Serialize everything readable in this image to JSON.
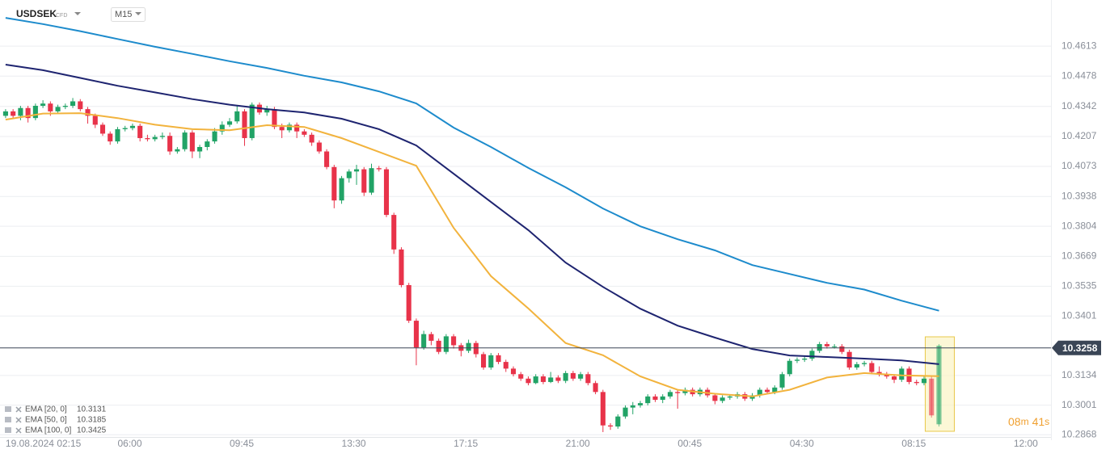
{
  "header": {
    "symbol": "USDSEK",
    "instrument": "CFD",
    "timeframe": "M15"
  },
  "chart_data": {
    "type": "candlestick",
    "up_color": "#21a366",
    "down_color": "#e8334a",
    "open": [
      10.43,
      10.432,
      10.43,
      10.4335,
      10.429,
      10.4345,
      10.4355,
      10.432,
      10.434,
      10.4345,
      10.4365,
      10.433,
      10.43,
      10.426,
      10.422,
      10.4185,
      10.424,
      10.4245,
      10.4255,
      10.42,
      10.4195,
      10.4205,
      10.421,
      10.414,
      10.415,
      10.4225,
      10.414,
      10.416,
      10.4185,
      10.423,
      10.426,
      10.4275,
      10.432,
      10.42,
      10.435,
      10.4315,
      10.433,
      10.425,
      10.4235,
      10.426,
      10.423,
      10.4215,
      10.418,
      10.414,
      10.407,
      10.392,
      10.402,
      10.405,
      10.406,
      10.3955,
      10.4065,
      10.406,
      10.3855,
      10.37,
      10.354,
      10.338,
      10.326,
      10.332,
      10.329,
      10.324,
      10.331,
      10.327,
      10.3245,
      10.328,
      10.323,
      10.317,
      10.3225,
      10.3195,
      10.3165,
      10.314,
      10.312,
      10.31,
      10.313,
      10.3105,
      10.3125,
      10.311,
      10.3145,
      10.312,
      10.314,
      10.31,
      10.306,
      10.291,
      10.2905,
      10.295,
      10.299,
      10.3,
      10.301,
      10.304,
      10.3025,
      10.304,
      10.306,
      10.3055,
      10.307,
      10.305,
      10.307,
      10.3045,
      10.302,
      10.3035,
      10.304,
      10.305,
      10.303,
      10.3045,
      10.307,
      10.306,
      10.308,
      10.314,
      10.32,
      10.3205,
      10.321,
      10.3245,
      10.3275,
      10.3265,
      10.3265,
      10.324,
      10.317,
      10.3185,
      10.319,
      10.315,
      10.314,
      10.313,
      10.3115,
      10.3165,
      10.3105,
      10.31,
      10.312,
      10.2915
    ],
    "high": [
      10.433,
      10.433,
      10.4345,
      10.4345,
      10.4355,
      10.437,
      10.4365,
      10.435,
      10.4355,
      10.438,
      10.4375,
      10.434,
      10.431,
      10.427,
      10.423,
      10.425,
      10.4255,
      10.4265,
      10.4265,
      10.4215,
      10.4215,
      10.4225,
      10.4225,
      10.416,
      10.4235,
      10.4235,
      10.417,
      10.4195,
      10.4245,
      10.4275,
      10.429,
      10.4345,
      10.433,
      10.436,
      10.436,
      10.4345,
      10.434,
      10.4265,
      10.427,
      10.427,
      10.424,
      10.4225,
      10.419,
      10.415,
      10.408,
      10.403,
      10.406,
      10.408,
      10.407,
      10.4085,
      10.4075,
      10.407,
      10.3865,
      10.371,
      10.355,
      10.339,
      10.3335,
      10.333,
      10.33,
      10.332,
      10.332,
      10.328,
      10.3295,
      10.329,
      10.324,
      10.3235,
      10.3235,
      10.3205,
      10.3175,
      10.315,
      10.313,
      10.314,
      10.314,
      10.315,
      10.3135,
      10.3155,
      10.3155,
      10.315,
      10.315,
      10.311,
      10.307,
      10.292,
      10.296,
      10.3,
      10.3015,
      10.302,
      10.305,
      10.305,
      10.305,
      10.307,
      10.307,
      10.308,
      10.308,
      10.308,
      10.308,
      10.3055,
      10.3045,
      10.305,
      10.306,
      10.306,
      10.3055,
      10.308,
      10.308,
      10.309,
      10.315,
      10.321,
      10.3215,
      10.322,
      10.3255,
      10.3285,
      10.3285,
      10.3275,
      10.3275,
      10.325,
      10.3195,
      10.32,
      10.32,
      10.3175,
      10.315,
      10.314,
      10.3175,
      10.3175,
      10.3115,
      10.3135,
      10.313,
      10.3275
    ],
    "low": [
      10.429,
      10.4285,
      10.428,
      10.427,
      10.428,
      10.4335,
      10.43,
      10.431,
      10.433,
      10.4335,
      10.432,
      10.4265,
      10.4245,
      10.421,
      10.417,
      10.4175,
      10.423,
      10.4235,
      10.4185,
      10.4185,
      10.4185,
      10.4195,
      10.4125,
      10.413,
      10.414,
      10.411,
      10.411,
      10.4145,
      10.4175,
      10.4215,
      10.425,
      10.4265,
      10.4165,
      10.419,
      10.4305,
      10.43,
      10.424,
      10.42,
      10.4225,
      10.42,
      10.4205,
      10.4165,
      10.413,
      10.406,
      10.3885,
      10.3905,
      10.4,
      10.399,
      10.394,
      10.3945,
      10.405,
      10.3845,
      10.368,
      10.353,
      10.337,
      10.318,
      10.325,
      10.327,
      10.323,
      10.323,
      10.3255,
      10.322,
      10.3235,
      10.3215,
      10.316,
      10.316,
      10.3185,
      10.315,
      10.313,
      10.311,
      10.309,
      10.3095,
      10.3095,
      10.31,
      10.31,
      10.31,
      10.311,
      10.311,
      10.309,
      10.305,
      10.288,
      10.289,
      10.2895,
      10.294,
      10.296,
      10.299,
      10.3,
      10.3015,
      10.301,
      10.303,
      10.2985,
      10.3045,
      10.304,
      10.304,
      10.3035,
      10.3005,
      10.301,
      10.3025,
      10.303,
      10.302,
      10.302,
      10.3035,
      10.305,
      10.305,
      10.307,
      10.313,
      10.319,
      10.3195,
      10.32,
      10.3235,
      10.3255,
      10.3255,
      10.323,
      10.316,
      10.316,
      10.3175,
      10.314,
      10.313,
      10.312,
      10.31,
      10.3105,
      10.3095,
      10.309,
      10.309,
      10.2945,
      10.2905
    ],
    "close": [
      10.432,
      10.43,
      10.4335,
      10.429,
      10.4345,
      10.4355,
      10.432,
      10.434,
      10.4345,
      10.4365,
      10.433,
      10.43,
      10.426,
      10.422,
      10.4185,
      10.424,
      10.4245,
      10.4255,
      10.42,
      10.4195,
      10.4205,
      10.421,
      10.414,
      10.415,
      10.4225,
      10.414,
      10.416,
      10.4185,
      10.423,
      10.426,
      10.4275,
      10.432,
      10.42,
      10.435,
      10.4315,
      10.433,
      10.425,
      10.4235,
      10.426,
      10.423,
      10.4215,
      10.418,
      10.414,
      10.407,
      10.392,
      10.402,
      10.405,
      10.406,
      10.3955,
      10.4065,
      10.406,
      10.3855,
      10.37,
      10.354,
      10.338,
      10.326,
      10.332,
      10.329,
      10.324,
      10.331,
      10.327,
      10.3245,
      10.328,
      10.323,
      10.317,
      10.3225,
      10.3195,
      10.3165,
      10.314,
      10.312,
      10.31,
      10.313,
      10.3105,
      10.3125,
      10.311,
      10.3145,
      10.312,
      10.314,
      10.31,
      10.306,
      10.291,
      10.2905,
      10.295,
      10.299,
      10.3,
      10.301,
      10.304,
      10.3025,
      10.304,
      10.306,
      10.3055,
      10.307,
      10.305,
      10.307,
      10.3045,
      10.302,
      10.3035,
      10.304,
      10.305,
      10.303,
      10.3045,
      10.307,
      10.306,
      10.308,
      10.314,
      10.32,
      10.3205,
      10.321,
      10.3245,
      10.3275,
      10.3265,
      10.3265,
      10.324,
      10.317,
      10.3185,
      10.319,
      10.315,
      10.314,
      10.313,
      10.3115,
      10.3165,
      10.3105,
      10.31,
      10.312,
      10.2955,
      10.3268
    ],
    "series": [
      {
        "name": "EMA [20, 0]",
        "last": 10.3131,
        "color": "#f2b33d",
        "x": [
          0,
          5,
          10,
          15,
          20,
          25,
          30,
          35,
          40,
          45,
          50,
          55,
          60,
          65,
          70,
          75,
          80,
          85,
          90,
          95,
          100,
          105,
          110,
          115,
          120,
          125
        ],
        "values": [
          10.4283,
          10.431,
          10.4312,
          10.429,
          10.426,
          10.424,
          10.4235,
          10.4258,
          10.425,
          10.42,
          10.4138,
          10.4076,
          10.3797,
          10.358,
          10.3435,
          10.328,
          10.3225,
          10.313,
          10.307,
          10.3052,
          10.304,
          10.307,
          10.3125,
          10.3145,
          10.3135,
          10.3131
        ]
      },
      {
        "name": "EMA [50, 0]",
        "last": 10.3185,
        "color": "#1e2470",
        "x": [
          0,
          5,
          10,
          15,
          20,
          25,
          30,
          35,
          40,
          45,
          50,
          55,
          60,
          65,
          70,
          75,
          80,
          85,
          90,
          95,
          100,
          105,
          110,
          115,
          120,
          125
        ],
        "values": [
          10.453,
          10.4505,
          10.447,
          10.4435,
          10.4405,
          10.4375,
          10.435,
          10.433,
          10.4315,
          10.4287,
          10.424,
          10.4167,
          10.404,
          10.3913,
          10.3787,
          10.3641,
          10.3532,
          10.3434,
          10.3358,
          10.3304,
          10.3253,
          10.3224,
          10.3217,
          10.321,
          10.3202,
          10.3185
        ]
      },
      {
        "name": "EMA [100, 0]",
        "last": 10.3425,
        "color": "#1d8bcc",
        "x": [
          0,
          5,
          10,
          15,
          20,
          25,
          30,
          35,
          40,
          45,
          50,
          55,
          60,
          65,
          70,
          75,
          80,
          85,
          90,
          95,
          100,
          105,
          110,
          115,
          120,
          125
        ],
        "values": [
          10.474,
          10.4712,
          10.468,
          10.4645,
          10.461,
          10.4578,
          10.4545,
          10.4515,
          10.448,
          10.445,
          10.441,
          10.4356,
          10.4247,
          10.416,
          10.4066,
          10.3979,
          10.3884,
          10.3804,
          10.3746,
          10.3696,
          10.363,
          10.359,
          10.355,
          10.352,
          10.347,
          10.3425
        ]
      }
    ],
    "current_price": 10.3258,
    "countdown": {
      "minutes": "08",
      "minutes_unit": "m",
      "seconds": "41",
      "seconds_unit": "s"
    },
    "ylim": [
      10.284,
      10.482
    ],
    "yticks": [
      10.4613,
      10.4478,
      10.4342,
      10.4207,
      10.4073,
      10.3938,
      10.3804,
      10.3669,
      10.3535,
      10.3401,
      10.3134,
      10.3001,
      10.2868
    ],
    "xlim": [
      -0.75,
      140
    ],
    "xticks": [
      {
        "value": 0,
        "label": "19.08.2024 02:15"
      },
      {
        "value": 15,
        "label": "06:00"
      },
      {
        "value": 30,
        "label": "09:45"
      },
      {
        "value": 45,
        "label": "13:30"
      },
      {
        "value": 60,
        "label": "17:15"
      },
      {
        "value": 75,
        "label": "21:00"
      },
      {
        "value": 90,
        "label": "00:45"
      },
      {
        "value": 105,
        "label": "04:30"
      },
      {
        "value": 120,
        "label": "08:15"
      },
      {
        "value": 135,
        "label": "12:00"
      }
    ],
    "grid": true
  }
}
